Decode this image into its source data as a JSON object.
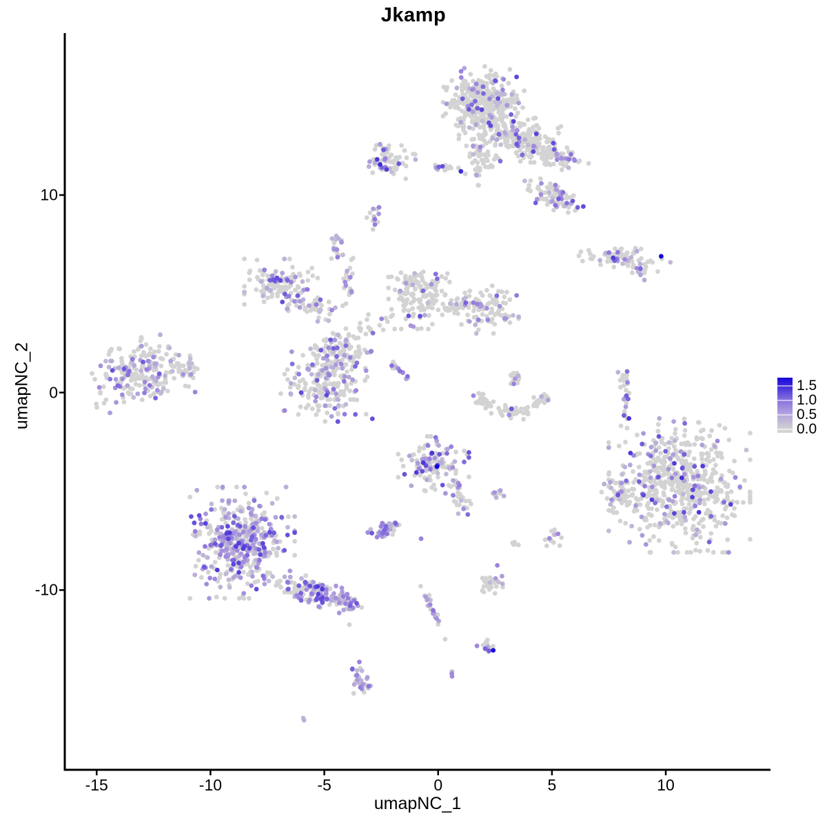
{
  "figure": {
    "title": "Jkamp",
    "background": "#FFFFFF"
  },
  "chart_data": {
    "type": "scatter",
    "title": "Jkamp",
    "xlabel": "umapNC_1",
    "ylabel": "umapNC_2",
    "xlim": [
      -16.4,
      14.6
    ],
    "ylim": [
      -19.1,
      18.2
    ],
    "x_ticks": [
      -15,
      -10,
      -5,
      0,
      5,
      10
    ],
    "y_ticks": [
      10,
      0,
      -10
    ],
    "grid": false,
    "point_radius_px": 3.4,
    "colors": {
      "zero": "#D3D3D3",
      "mid": "#9B82DD",
      "high": "#1000D8",
      "axis": "#000000"
    },
    "legend": {
      "position": "right",
      "tick_labels": [
        "1.5",
        "1.0",
        "0.5",
        "0.0"
      ],
      "tick_values": [
        1.5,
        1.0,
        0.5,
        0.0
      ],
      "bar_max_value": 1.8,
      "gradient": [
        "#D3D3D3",
        "#9B82DD",
        "#1000D8"
      ]
    },
    "clusters": [
      {
        "name": "top-main",
        "x": 2.0,
        "y": 14.5,
        "rx": 1.55,
        "ry": 1.75,
        "n": 420,
        "frac": 0.13,
        "angle": 0,
        "emax": 1.35
      },
      {
        "name": "top-right-ext",
        "x": 3.9,
        "y": 12.8,
        "rx": 1.3,
        "ry": 1.0,
        "n": 150,
        "frac": 0.13,
        "angle": 0,
        "emax": 1.35
      },
      {
        "name": "top-right-arm",
        "x": 5.2,
        "y": 11.9,
        "rx": 1.25,
        "ry": 0.5,
        "n": 70,
        "frac": 0.2,
        "angle": 8,
        "emax": 1.3
      },
      {
        "name": "top-lower-arm",
        "x": 5.1,
        "y": 9.85,
        "rx": 1.3,
        "ry": 0.6,
        "n": 85,
        "frac": 0.24,
        "angle": 28,
        "emax": 1.3
      },
      {
        "name": "top-neck",
        "x": 1.8,
        "y": 11.7,
        "rx": 0.6,
        "ry": 1.05,
        "n": 55,
        "frac": 0.1,
        "angle": 0,
        "emax": 1.2
      },
      {
        "name": "top-left-small",
        "x": -2.2,
        "y": 11.8,
        "rx": 1.05,
        "ry": 0.85,
        "n": 70,
        "frac": 0.22,
        "angle": 0,
        "emax": 1.45
      },
      {
        "name": "top-tiny-strand",
        "x": 0.3,
        "y": 11.4,
        "rx": 0.55,
        "ry": 0.2,
        "n": 13,
        "frac": 0.15,
        "angle": 0,
        "emax": 1.3
      },
      {
        "name": "small-diagonal",
        "x": -2.75,
        "y": 8.8,
        "rx": 0.32,
        "ry": 0.52,
        "n": 13,
        "frac": 0.5,
        "angle": 25,
        "emax": 1.1
      },
      {
        "name": "small-triangle",
        "x": -4.45,
        "y": 7.45,
        "rx": 0.42,
        "ry": 0.58,
        "n": 18,
        "frac": 0.45,
        "angle": 0,
        "emax": 1.1
      },
      {
        "name": "right-horizontal",
        "x": 8.2,
        "y": 6.85,
        "rx": 1.75,
        "ry": 0.5,
        "n": 72,
        "frac": 0.25,
        "angle": 5,
        "emax": 1.4
      },
      {
        "name": "right-horizontal-tail",
        "x": 8.85,
        "y": 6.1,
        "rx": 0.42,
        "ry": 0.22,
        "n": 8,
        "frac": 0.5,
        "angle": 38,
        "emax": 1.2
      },
      {
        "name": "midleft-top",
        "x": -6.9,
        "y": 5.5,
        "rx": 1.4,
        "ry": 1.1,
        "n": 125,
        "frac": 0.22,
        "angle": 0,
        "emax": 1.3
      },
      {
        "name": "midleft-arm",
        "x": -5.3,
        "y": 4.2,
        "rx": 1.1,
        "ry": 0.5,
        "n": 40,
        "frac": 0.25,
        "angle": 15,
        "emax": 1.2
      },
      {
        "name": "vertical-strand",
        "x": -3.9,
        "y": 5.6,
        "rx": 0.28,
        "ry": 1.05,
        "n": 20,
        "frac": 0.22,
        "angle": 0,
        "emax": 1.2
      },
      {
        "name": "center-top",
        "x": -0.8,
        "y": 5.0,
        "rx": 1.2,
        "ry": 1.55,
        "n": 150,
        "frac": 0.12,
        "angle": 0,
        "emax": 1.25
      },
      {
        "name": "center-right",
        "x": 2.1,
        "y": 4.2,
        "rx": 1.25,
        "ry": 1.05,
        "n": 105,
        "frac": 0.14,
        "angle": 0,
        "emax": 1.3
      },
      {
        "name": "center-bridge",
        "x": 0.6,
        "y": 4.4,
        "rx": 0.85,
        "ry": 0.35,
        "n": 22,
        "frac": 0.15,
        "angle": -8,
        "emax": 1.2
      },
      {
        "name": "center-scatter",
        "x": -3.0,
        "y": 3.3,
        "rx": 0.9,
        "ry": 0.6,
        "n": 18,
        "frac": 0.15,
        "angle": -20,
        "emax": 1.1
      },
      {
        "name": "mid-blob",
        "x": -4.2,
        "y": 2.2,
        "rx": 1.05,
        "ry": 0.9,
        "n": 80,
        "frac": 0.2,
        "angle": 0,
        "emax": 1.2
      },
      {
        "name": "diagonal-streak",
        "x": -1.95,
        "y": 1.3,
        "rx": 1.05,
        "ry": 0.16,
        "n": 16,
        "frac": 0.45,
        "angle": 36,
        "emax": 1.1
      },
      {
        "name": "lower-mid-round",
        "x": -4.9,
        "y": 0.6,
        "rx": 1.75,
        "ry": 1.8,
        "n": 205,
        "frac": 0.26,
        "angle": 0,
        "emax": 1.3
      },
      {
        "name": "far-left",
        "x": -13.0,
        "y": 1.0,
        "rx": 1.9,
        "ry": 1.55,
        "n": 225,
        "frac": 0.33,
        "angle": -8,
        "emax": 1.25
      },
      {
        "name": "far-left-tip",
        "x": -11.2,
        "y": 1.3,
        "rx": 0.65,
        "ry": 0.4,
        "n": 22,
        "frac": 0.2,
        "angle": 0,
        "emax": 1.0
      },
      {
        "name": "arc-left",
        "x": 2.15,
        "y": -0.55,
        "rx": 0.78,
        "ry": 0.3,
        "n": 28,
        "frac": 0.08,
        "angle": 25,
        "emax": 1.2
      },
      {
        "name": "arc-bottom",
        "x": 3.3,
        "y": -0.95,
        "rx": 0.85,
        "ry": 0.3,
        "n": 30,
        "frac": 0.07,
        "angle": 0,
        "emax": 1.2
      },
      {
        "name": "arc-right",
        "x": 4.4,
        "y": -0.45,
        "rx": 0.6,
        "ry": 0.28,
        "n": 20,
        "frac": 0.1,
        "angle": -30,
        "emax": 1.2
      },
      {
        "name": "arc-top-mini",
        "x": 3.35,
        "y": 0.7,
        "rx": 0.48,
        "ry": 0.42,
        "n": 16,
        "frac": 0.3,
        "angle": 0,
        "emax": 1.2
      },
      {
        "name": "right-vertical-strand",
        "x": 8.2,
        "y": 0.0,
        "rx": 0.26,
        "ry": 1.5,
        "n": 30,
        "frac": 0.3,
        "angle": -6,
        "emax": 1.2
      },
      {
        "name": "big-right",
        "x": 10.6,
        "y": -4.7,
        "rx": 2.7,
        "ry": 2.95,
        "n": 580,
        "frac": 0.17,
        "angle": 0,
        "emax": 1.5
      },
      {
        "name": "big-right-protrusion",
        "x": 8.1,
        "y": -5.1,
        "rx": 0.8,
        "ry": 0.9,
        "n": 55,
        "frac": 0.15,
        "angle": 0,
        "emax": 1.3
      },
      {
        "name": "center-low",
        "x": -0.2,
        "y": -3.6,
        "rx": 1.35,
        "ry": 1.2,
        "n": 125,
        "frac": 0.42,
        "angle": 0,
        "emax": 1.55
      },
      {
        "name": "center-low-tail",
        "x": 0.9,
        "y": -5.3,
        "rx": 0.75,
        "ry": 0.4,
        "n": 28,
        "frac": 0.3,
        "angle": 58,
        "emax": 1.3
      },
      {
        "name": "tiny-right-blob",
        "x": 2.6,
        "y": -5.1,
        "rx": 0.4,
        "ry": 0.22,
        "n": 9,
        "frac": 0.5,
        "angle": 0,
        "emax": 1.1
      },
      {
        "name": "small-purple",
        "x": -2.3,
        "y": -6.9,
        "rx": 0.7,
        "ry": 0.5,
        "n": 36,
        "frac": 0.7,
        "angle": -15,
        "emax": 1.2
      },
      {
        "name": "right-mini-strand",
        "x": 5.1,
        "y": -7.35,
        "rx": 0.28,
        "ry": 0.58,
        "n": 12,
        "frac": 0.55,
        "angle": 12,
        "emax": 1.25
      },
      {
        "name": "right-mini-pair",
        "x": 3.4,
        "y": -7.75,
        "rx": 0.3,
        "ry": 0.25,
        "n": 5,
        "frac": 0.3,
        "angle": 0,
        "emax": 1.0
      },
      {
        "name": "bottom-left-main",
        "x": -8.6,
        "y": -7.6,
        "rx": 2.0,
        "ry": 2.45,
        "n": 430,
        "frac": 0.55,
        "angle": 0,
        "emax": 1.4
      },
      {
        "name": "bottom-left-tail",
        "x": -5.3,
        "y": -10.2,
        "rx": 1.6,
        "ry": 0.6,
        "n": 125,
        "frac": 0.55,
        "angle": 19,
        "emax": 1.4
      },
      {
        "name": "bottom-left-tip",
        "x": -3.95,
        "y": -10.55,
        "rx": 0.55,
        "ry": 0.4,
        "n": 32,
        "frac": 0.6,
        "angle": 0,
        "emax": 1.4
      },
      {
        "name": "bottom-diagonal-strand",
        "x": -0.27,
        "y": -10.9,
        "rx": 1.3,
        "ry": 0.14,
        "n": 20,
        "frac": 0.5,
        "angle": 66,
        "emax": 1.2
      },
      {
        "name": "bottom-small-right",
        "x": 2.3,
        "y": -9.65,
        "rx": 0.58,
        "ry": 0.45,
        "n": 30,
        "frac": 0.3,
        "angle": 0,
        "emax": 1.25
      },
      {
        "name": "bottom-small-dark",
        "x": 2.2,
        "y": -12.85,
        "rx": 0.5,
        "ry": 0.3,
        "n": 13,
        "frac": 0.5,
        "angle": 10,
        "emax": 1.2
      },
      {
        "name": "bottom-elongated",
        "x": -3.4,
        "y": -14.6,
        "rx": 0.4,
        "ry": 0.95,
        "n": 30,
        "frac": 0.65,
        "angle": -14,
        "emax": 1.2
      },
      {
        "name": "bottom-tiny-pair",
        "x": -5.95,
        "y": -16.5,
        "rx": 0.18,
        "ry": 0.1,
        "n": 2,
        "frac": 1.0,
        "angle": 20,
        "emax": 0.7
      },
      {
        "name": "bottom-pair",
        "x": 0.65,
        "y": -14.1,
        "rx": 0.15,
        "ry": 0.28,
        "n": 3,
        "frac": 0.7,
        "angle": 0,
        "emax": 1.0
      }
    ],
    "singles": [
      {
        "x": 9.8,
        "y": 6.9,
        "value": 1.8
      },
      {
        "x": -0.05,
        "y": -3.75,
        "value": 1.8
      },
      {
        "x": 2.42,
        "y": -13.05,
        "value": 1.7
      },
      {
        "x": 1.0,
        "y": 11.2,
        "value": 1.5
      },
      {
        "x": -2.55,
        "y": 11.55,
        "value": 1.5
      },
      {
        "x": -0.75,
        "y": -7.4,
        "value": 0.9
      },
      {
        "x": 2.6,
        "y": -8.75,
        "value": 0.9
      },
      {
        "x": -3.9,
        "y": -11.75,
        "value": 0
      },
      {
        "x": 4.7,
        "y": -7.45,
        "value": 0
      },
      {
        "x": 3.75,
        "y": -1.35,
        "value": 0
      },
      {
        "x": 8.3,
        "y": -1.8,
        "value": 0
      }
    ]
  }
}
